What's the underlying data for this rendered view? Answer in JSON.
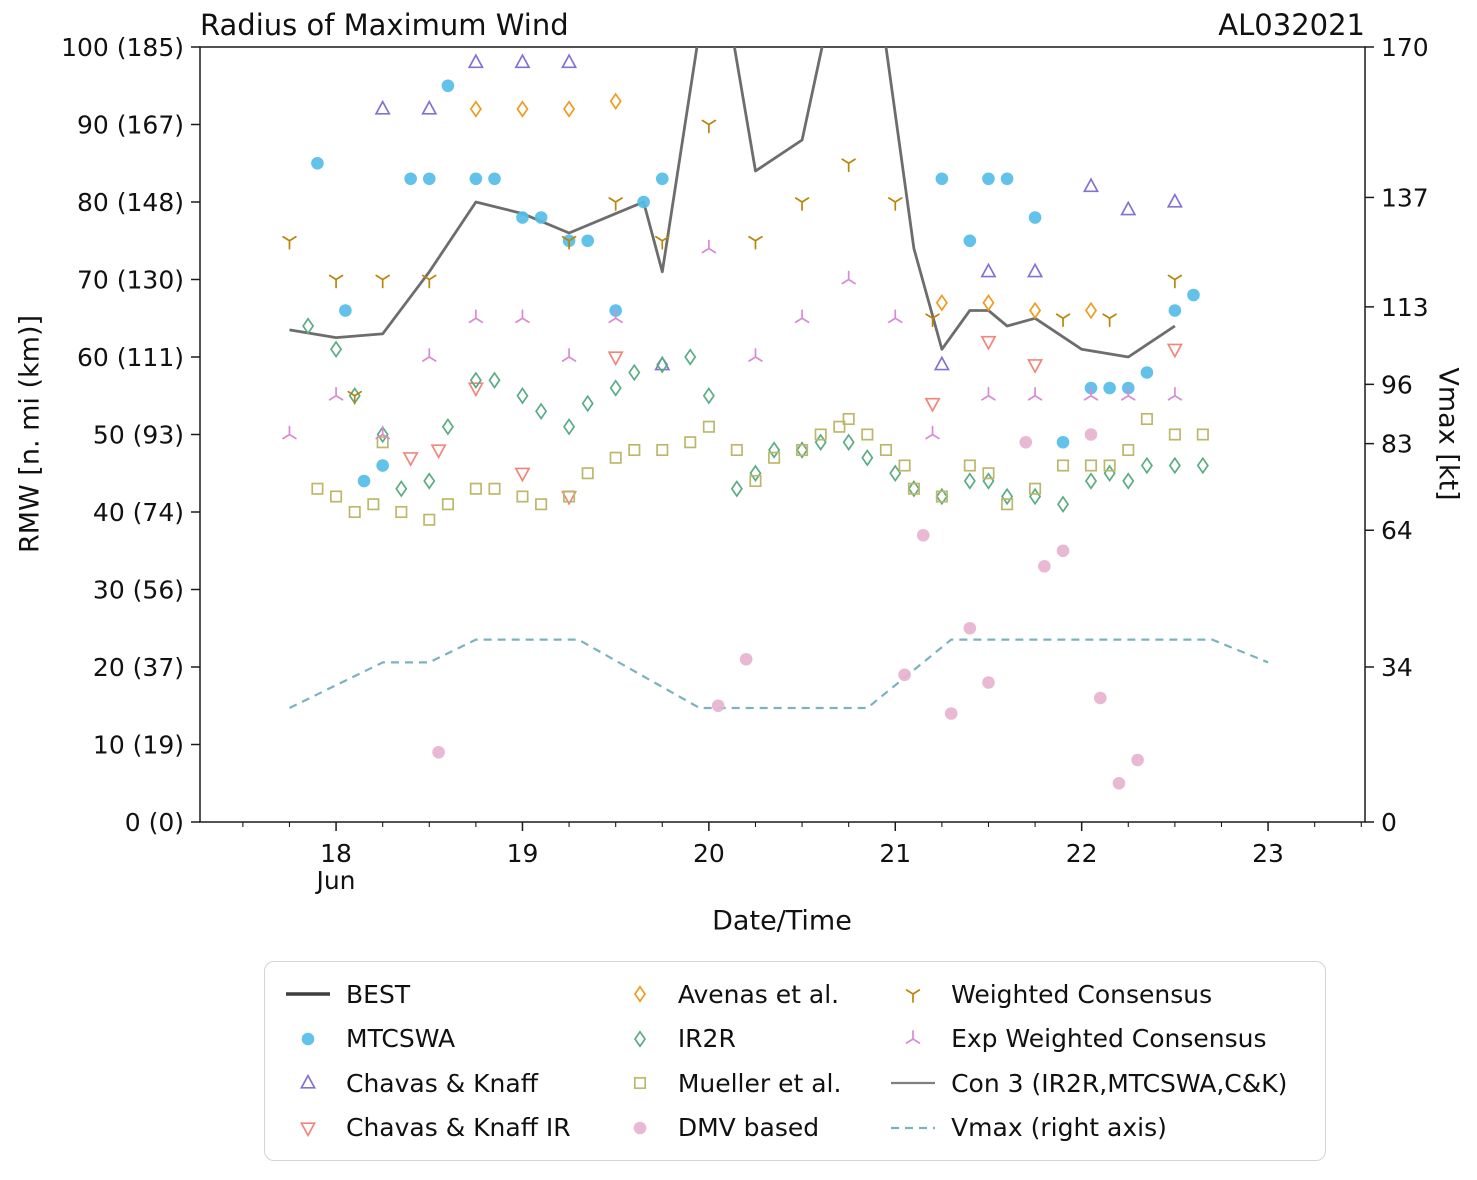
{
  "header": {
    "title": "Radius of Maximum Wind",
    "storm_id": "AL032021"
  },
  "axes": {
    "x_label": "Date/Time",
    "y_left_label": "RMW [n. mi (km)]",
    "y_right_label": "Vmax [kt]",
    "month_label": "Jun"
  },
  "legend": {
    "items": [
      {
        "label": "BEST",
        "marker": "line",
        "color": "#3f3f3f",
        "lw": 3.4
      },
      {
        "label": "MTCSWA",
        "marker": "circle",
        "filled": true,
        "color": "#55bde8"
      },
      {
        "label": "Chavas & Knaff",
        "marker": "triangle-up",
        "color": "#8273d3"
      },
      {
        "label": "Chavas & Knaff IR",
        "marker": "triangle-down",
        "color": "#f2857a"
      },
      {
        "label": "Avenas et al.",
        "marker": "diamond",
        "color": "#ef9b20"
      },
      {
        "label": "IR2R",
        "marker": "diamond",
        "color": "#5aac84"
      },
      {
        "label": "Mueller et al.",
        "marker": "square",
        "color": "#bdb76b"
      },
      {
        "label": "DMV based",
        "marker": "circle",
        "filled": true,
        "color": "#e7b3d0"
      },
      {
        "label": "Weighted Consensus",
        "marker": "tri-down",
        "color": "#b8860b"
      },
      {
        "label": "Exp Weighted Consensus",
        "marker": "tri-up",
        "color": "#d98ad4"
      },
      {
        "label": "Con 3 (IR2R,MTCSWA,C&K)",
        "marker": "line",
        "color": "#808080",
        "lw": 2.2
      },
      {
        "label": "Vmax (right axis)",
        "marker": "dashed-line",
        "color": "#7cb2bf",
        "lw": 2.2
      }
    ]
  },
  "chart_data": {
    "type": "scatter",
    "title": "Radius of Maximum Wind",
    "storm_id": "AL032021",
    "xlabel": "Date/Time",
    "x_unit": "day of month (Jun)",
    "x_range": [
      17.27,
      23.52
    ],
    "y_left": {
      "label": "RMW [n. mi (km)]",
      "range": [
        0,
        100
      ]
    },
    "y_right": {
      "label": "Vmax [kt]",
      "range": [
        0,
        170
      ]
    },
    "grid": false,
    "legend_position": "bottom",
    "x_ticks": [
      {
        "v": 18,
        "label": "18"
      },
      {
        "v": 19,
        "label": "19"
      },
      {
        "v": 20,
        "label": "20"
      },
      {
        "v": 21,
        "label": "21"
      },
      {
        "v": 22,
        "label": "22"
      },
      {
        "v": 23,
        "label": "23"
      }
    ],
    "y_left_ticks": [
      {
        "v": 0,
        "label": "0 (0)"
      },
      {
        "v": 10,
        "label": "10 (19)"
      },
      {
        "v": 20,
        "label": "20 (37)"
      },
      {
        "v": 30,
        "label": "30 (56)"
      },
      {
        "v": 40,
        "label": "40 (74)"
      },
      {
        "v": 50,
        "label": "50 (93)"
      },
      {
        "v": 60,
        "label": "60 (111)"
      },
      {
        "v": 70,
        "label": "70 (130)"
      },
      {
        "v": 80,
        "label": "80 (148)"
      },
      {
        "v": 90,
        "label": "90 (167)"
      },
      {
        "v": 100,
        "label": "100 (185)"
      }
    ],
    "y_right_ticks": [
      {
        "v": 0,
        "label": "0"
      },
      {
        "v": 34,
        "label": "34"
      },
      {
        "v": 64,
        "label": "64"
      },
      {
        "v": 83,
        "label": "83"
      },
      {
        "v": 96,
        "label": "96"
      },
      {
        "v": 113,
        "label": "113"
      },
      {
        "v": 137,
        "label": "137"
      },
      {
        "v": 170,
        "label": "170"
      }
    ],
    "series": [
      {
        "name": "Con 3 (IR2R,MTCSWA,C&K)",
        "type": "line",
        "axis": "left",
        "color": "#6d6d6d",
        "lw": 2.8,
        "points": [
          [
            17.75,
            63.5
          ],
          [
            18.0,
            62.5
          ],
          [
            18.25,
            63
          ],
          [
            18.5,
            71
          ],
          [
            18.75,
            80
          ],
          [
            19.0,
            78.5
          ],
          [
            19.25,
            76
          ],
          [
            19.5,
            78.5
          ],
          [
            19.65,
            80
          ],
          [
            19.75,
            71
          ],
          [
            20.0,
            110
          ],
          [
            20.13,
            101
          ],
          [
            20.25,
            84
          ],
          [
            20.5,
            88
          ],
          [
            20.75,
            116
          ],
          [
            20.95,
            100
          ],
          [
            21.1,
            74
          ],
          [
            21.25,
            61
          ],
          [
            21.4,
            66
          ],
          [
            21.5,
            66
          ],
          [
            21.6,
            64
          ],
          [
            21.75,
            65
          ],
          [
            22.0,
            61
          ],
          [
            22.25,
            60
          ],
          [
            22.5,
            64
          ]
        ]
      },
      {
        "name": "Vmax (right axis)",
        "type": "line",
        "axis": "right",
        "color": "#7cb2bf",
        "lw": 2.2,
        "dash": "8 6",
        "points": [
          [
            17.75,
            25
          ],
          [
            18.25,
            35
          ],
          [
            18.5,
            35
          ],
          [
            18.75,
            40
          ],
          [
            19.3,
            40
          ],
          [
            19.95,
            25
          ],
          [
            20.85,
            25
          ],
          [
            21.3,
            40
          ],
          [
            22.7,
            40
          ],
          [
            23.0,
            35
          ]
        ]
      },
      {
        "name": "MTCSWA",
        "type": "scatter",
        "marker": "circle",
        "filled": true,
        "axis": "left",
        "color": "#55bde8",
        "points": [
          [
            17.9,
            85
          ],
          [
            18.05,
            66
          ],
          [
            18.15,
            44
          ],
          [
            18.25,
            46
          ],
          [
            18.4,
            83
          ],
          [
            18.5,
            83
          ],
          [
            18.6,
            95
          ],
          [
            18.75,
            83
          ],
          [
            18.85,
            83
          ],
          [
            19.0,
            78
          ],
          [
            19.1,
            78
          ],
          [
            19.25,
            75
          ],
          [
            19.35,
            75
          ],
          [
            19.5,
            66
          ],
          [
            19.65,
            80
          ],
          [
            19.75,
            83
          ],
          [
            21.25,
            83
          ],
          [
            21.4,
            75
          ],
          [
            21.5,
            83
          ],
          [
            21.6,
            83
          ],
          [
            21.75,
            78
          ],
          [
            21.9,
            49
          ],
          [
            22.05,
            56
          ],
          [
            22.15,
            56
          ],
          [
            22.25,
            56
          ],
          [
            22.35,
            58
          ],
          [
            22.5,
            66
          ],
          [
            22.6,
            68
          ]
        ]
      },
      {
        "name": "Chavas & Knaff",
        "type": "scatter",
        "marker": "triangle-up",
        "filled": false,
        "axis": "left",
        "color": "#8273d3",
        "points": [
          [
            18.25,
            92
          ],
          [
            18.5,
            92
          ],
          [
            18.75,
            98
          ],
          [
            19.0,
            98
          ],
          [
            19.25,
            98
          ],
          [
            19.75,
            59
          ],
          [
            21.25,
            59
          ],
          [
            21.5,
            71
          ],
          [
            21.75,
            71
          ],
          [
            22.05,
            82
          ],
          [
            22.25,
            79
          ],
          [
            22.5,
            80
          ]
        ]
      },
      {
        "name": "Chavas & Knaff IR",
        "type": "scatter",
        "marker": "triangle-down",
        "filled": false,
        "axis": "left",
        "color": "#f2857a",
        "points": [
          [
            18.4,
            47
          ],
          [
            18.55,
            48
          ],
          [
            18.75,
            56
          ],
          [
            19.0,
            45
          ],
          [
            19.25,
            42
          ],
          [
            19.5,
            60
          ],
          [
            21.2,
            54
          ],
          [
            21.5,
            62
          ],
          [
            21.75,
            59
          ],
          [
            22.5,
            61
          ]
        ]
      },
      {
        "name": "Avenas et al.",
        "type": "scatter",
        "marker": "diamond",
        "filled": false,
        "axis": "left",
        "color": "#ef9b20",
        "points": [
          [
            18.75,
            92
          ],
          [
            19.0,
            92
          ],
          [
            19.25,
            92
          ],
          [
            19.5,
            93
          ],
          [
            21.25,
            67
          ],
          [
            21.5,
            67
          ],
          [
            21.75,
            66
          ],
          [
            22.05,
            66
          ]
        ]
      },
      {
        "name": "IR2R",
        "type": "scatter",
        "marker": "diamond",
        "filled": false,
        "axis": "left",
        "color": "#5aac84",
        "points": [
          [
            17.85,
            64
          ],
          [
            18.0,
            61
          ],
          [
            18.1,
            55
          ],
          [
            18.25,
            50
          ],
          [
            18.35,
            43
          ],
          [
            18.5,
            44
          ],
          [
            18.6,
            51
          ],
          [
            18.75,
            57
          ],
          [
            18.85,
            57
          ],
          [
            19.0,
            55
          ],
          [
            19.1,
            53
          ],
          [
            19.25,
            51
          ],
          [
            19.35,
            54
          ],
          [
            19.5,
            56
          ],
          [
            19.6,
            58
          ],
          [
            19.75,
            59
          ],
          [
            19.9,
            60
          ],
          [
            20.0,
            55
          ],
          [
            20.15,
            43
          ],
          [
            20.25,
            45
          ],
          [
            20.35,
            48
          ],
          [
            20.5,
            48
          ],
          [
            20.6,
            49
          ],
          [
            20.75,
            49
          ],
          [
            20.85,
            47
          ],
          [
            21.0,
            45
          ],
          [
            21.1,
            43
          ],
          [
            21.25,
            42
          ],
          [
            21.4,
            44
          ],
          [
            21.5,
            44
          ],
          [
            21.6,
            42
          ],
          [
            21.75,
            42
          ],
          [
            21.9,
            41
          ],
          [
            22.05,
            44
          ],
          [
            22.15,
            45
          ],
          [
            22.25,
            44
          ],
          [
            22.35,
            46
          ],
          [
            22.5,
            46
          ],
          [
            22.65,
            46
          ]
        ]
      },
      {
        "name": "Mueller et al.",
        "type": "scatter",
        "marker": "square",
        "filled": false,
        "axis": "left",
        "color": "#bdb76b",
        "points": [
          [
            17.9,
            43
          ],
          [
            18.0,
            42
          ],
          [
            18.1,
            40
          ],
          [
            18.2,
            41
          ],
          [
            18.25,
            49
          ],
          [
            18.35,
            40
          ],
          [
            18.5,
            39
          ],
          [
            18.6,
            41
          ],
          [
            18.75,
            43
          ],
          [
            18.85,
            43
          ],
          [
            19.0,
            42
          ],
          [
            19.1,
            41
          ],
          [
            19.25,
            42
          ],
          [
            19.35,
            45
          ],
          [
            19.5,
            47
          ],
          [
            19.6,
            48
          ],
          [
            19.75,
            48
          ],
          [
            19.9,
            49
          ],
          [
            20.0,
            51
          ],
          [
            20.15,
            48
          ],
          [
            20.25,
            44
          ],
          [
            20.35,
            47
          ],
          [
            20.5,
            48
          ],
          [
            20.6,
            50
          ],
          [
            20.7,
            51
          ],
          [
            20.75,
            52
          ],
          [
            20.85,
            50
          ],
          [
            20.95,
            48
          ],
          [
            21.05,
            46
          ],
          [
            21.1,
            43
          ],
          [
            21.25,
            42
          ],
          [
            21.4,
            46
          ],
          [
            21.5,
            45
          ],
          [
            21.6,
            41
          ],
          [
            21.75,
            43
          ],
          [
            21.9,
            46
          ],
          [
            22.05,
            46
          ],
          [
            22.15,
            46
          ],
          [
            22.25,
            48
          ],
          [
            22.35,
            52
          ],
          [
            22.5,
            50
          ],
          [
            22.65,
            50
          ]
        ]
      },
      {
        "name": "DMV based",
        "type": "scatter",
        "marker": "circle",
        "filled": true,
        "axis": "left",
        "color": "#e7b3d0",
        "points": [
          [
            18.55,
            9
          ],
          [
            20.05,
            15
          ],
          [
            20.2,
            21
          ],
          [
            21.05,
            19
          ],
          [
            21.15,
            37
          ],
          [
            21.3,
            14
          ],
          [
            21.4,
            25
          ],
          [
            21.5,
            18
          ],
          [
            21.7,
            49
          ],
          [
            21.8,
            33
          ],
          [
            21.9,
            35
          ],
          [
            22.05,
            50
          ],
          [
            22.1,
            16
          ],
          [
            22.2,
            5
          ],
          [
            22.3,
            8
          ]
        ]
      },
      {
        "name": "Weighted Consensus",
        "type": "scatter",
        "marker": "tri-down",
        "filled": false,
        "axis": "left",
        "color": "#b8860b",
        "points": [
          [
            17.75,
            75
          ],
          [
            18.0,
            70
          ],
          [
            18.1,
            55
          ],
          [
            18.25,
            70
          ],
          [
            18.5,
            70
          ],
          [
            19.25,
            75
          ],
          [
            19.5,
            80
          ],
          [
            19.75,
            75
          ],
          [
            20.0,
            90
          ],
          [
            20.25,
            75
          ],
          [
            20.5,
            80
          ],
          [
            20.75,
            85
          ],
          [
            21.0,
            80
          ],
          [
            21.2,
            65
          ],
          [
            21.9,
            65
          ],
          [
            22.15,
            65
          ],
          [
            22.5,
            70
          ]
        ]
      },
      {
        "name": "Exp Weighted Consensus",
        "type": "scatter",
        "marker": "tri-up",
        "filled": false,
        "axis": "left",
        "color": "#d98ad4",
        "points": [
          [
            17.75,
            50
          ],
          [
            18.0,
            55
          ],
          [
            18.25,
            50
          ],
          [
            18.5,
            60
          ],
          [
            18.75,
            65
          ],
          [
            19.0,
            65
          ],
          [
            19.25,
            60
          ],
          [
            19.5,
            65
          ],
          [
            20.0,
            74
          ],
          [
            20.25,
            60
          ],
          [
            20.5,
            65
          ],
          [
            20.75,
            70
          ],
          [
            21.0,
            65
          ],
          [
            21.2,
            50
          ],
          [
            21.5,
            55
          ],
          [
            21.75,
            55
          ],
          [
            22.05,
            55
          ],
          [
            22.25,
            55
          ],
          [
            22.5,
            55
          ]
        ]
      }
    ]
  }
}
